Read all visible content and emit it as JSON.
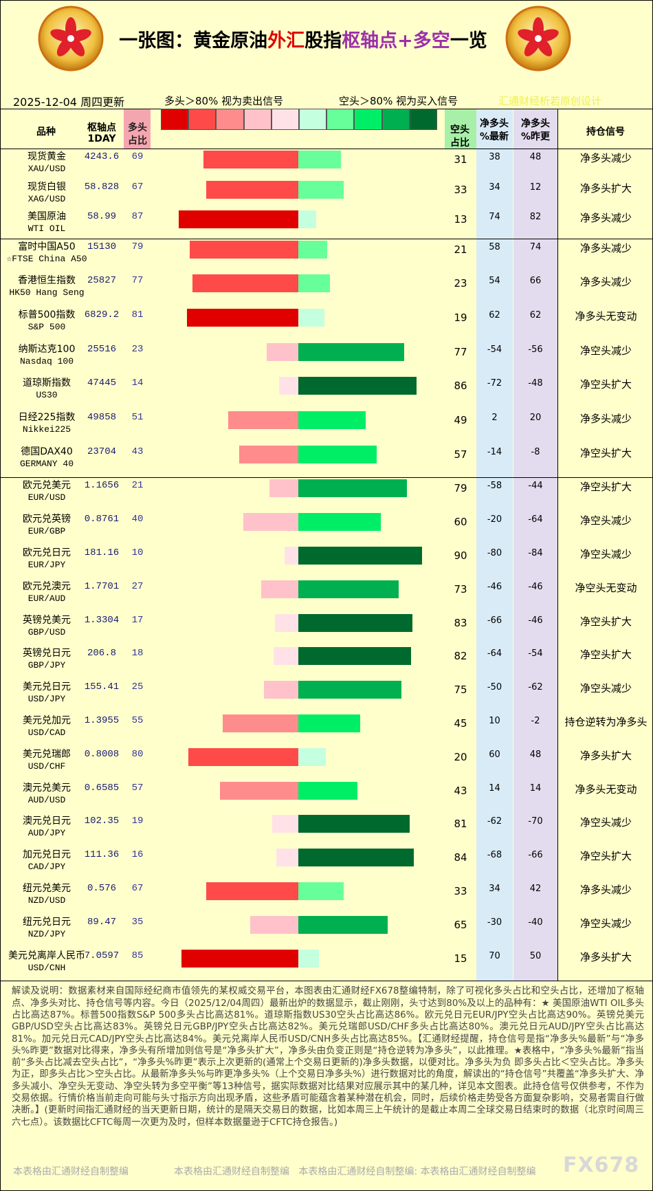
{
  "header": {
    "title_parts": [
      {
        "text": "一张图：黄金原油",
        "color": "#000000"
      },
      {
        "text": "外汇",
        "color": "#e00000"
      },
      {
        "text": "股指",
        "color": "#000000"
      },
      {
        "text": "枢轴点+多空",
        "color": "#9b30a8"
      },
      {
        "text": "一览",
        "color": "#000000"
      }
    ],
    "date": "2025-12-04 周四更新",
    "legend_long": "多头＞80% 视为卖出信号",
    "legend_short": "空头＞80% 视为买入信号",
    "credit": "汇通财经析若原创设计",
    "legend_colors": [
      "#e00000",
      "#ff4a4a",
      "#ff8c8c",
      "#ffc2ca",
      "#ffe2e8",
      "#c4ffe0",
      "#66ff99",
      "#00ee66",
      "#00b050",
      "#006a2e"
    ]
  },
  "columns": {
    "name": "品种",
    "pivot": [
      "枢轴点",
      "1DAY"
    ],
    "long": [
      "多头",
      "占比"
    ],
    "short": [
      "空头",
      "占比"
    ],
    "net_new": [
      "净多头",
      "%最新"
    ],
    "net_prev": [
      "净多头",
      "%昨更"
    ],
    "signal": "持仓信号"
  },
  "sections": [
    [
      {
        "name": "现货黄金",
        "code": "XAU/USD",
        "pivot": 4243.6,
        "long": 69,
        "short": 31,
        "net_new": 38,
        "net_prev": 48,
        "signal": "净多头减少"
      },
      {
        "name": "现货白银",
        "code": "XAG/USD",
        "pivot": 58.828,
        "long": 67,
        "short": 33,
        "net_new": 34,
        "net_prev": 12,
        "signal": "净多头扩大"
      },
      {
        "name": "美国原油",
        "code": "WTI OIL",
        "pivot": 58.99,
        "long": 87,
        "short": 13,
        "net_new": 74,
        "net_prev": 82,
        "signal": "净多头减少"
      }
    ],
    [
      {
        "name": "富时中国A50",
        "code": "☆FTSE China A50",
        "pivot": 15130,
        "long": 79,
        "short": 21,
        "net_new": 58,
        "net_prev": 74,
        "signal": "净多头减少"
      },
      {
        "name": "香港恒生指数",
        "code": "HK50 Hang Seng",
        "pivot": 25827,
        "long": 77,
        "short": 23,
        "net_new": 54,
        "net_prev": 66,
        "signal": "净多头减少"
      },
      {
        "name": "标普500指数",
        "code": "S&P 500",
        "pivot": 6829.2,
        "long": 81,
        "short": 19,
        "net_new": 62,
        "net_prev": 62,
        "signal": "净多头无变动"
      },
      {
        "name": "纳斯达克100",
        "code": "Nasdaq 100",
        "pivot": 25516,
        "long": 23,
        "short": 77,
        "net_new": -54,
        "net_prev": -56,
        "signal": "净空头减少"
      },
      {
        "name": "道琼斯指数",
        "code": "US30",
        "pivot": 47445,
        "long": 14,
        "short": 86,
        "net_new": -72,
        "net_prev": -48,
        "signal": "净空头扩大"
      },
      {
        "name": "日经225指数",
        "code": "Nikkei225",
        "pivot": 49858,
        "long": 51,
        "short": 49,
        "net_new": 2,
        "net_prev": 20,
        "signal": "净多头减少"
      },
      {
        "name": "德国DAX40",
        "code": "GERMANY 40",
        "pivot": 23704,
        "long": 43,
        "short": 57,
        "net_new": -14,
        "net_prev": -8,
        "signal": "净空头扩大"
      }
    ],
    [
      {
        "name": "欧元兑美元",
        "code": "EUR/USD",
        "pivot": 1.1656,
        "long": 21,
        "short": 79,
        "net_new": -58,
        "net_prev": -44,
        "signal": "净空头扩大"
      },
      {
        "name": "欧元兑英镑",
        "code": "EUR/GBP",
        "pivot": 0.8761,
        "long": 40,
        "short": 60,
        "net_new": -20,
        "net_prev": -64,
        "signal": "净空头减少"
      },
      {
        "name": "欧元兑日元",
        "code": "EUR/JPY",
        "pivot": 181.16,
        "long": 10,
        "short": 90,
        "net_new": -80,
        "net_prev": -84,
        "signal": "净空头减少"
      },
      {
        "name": "欧元兑澳元",
        "code": "EUR/AUD",
        "pivot": 1.7701,
        "long": 27,
        "short": 73,
        "net_new": -46,
        "net_prev": -46,
        "signal": "净空头无变动"
      },
      {
        "name": "英镑兑美元",
        "code": "GBP/USD",
        "pivot": 1.3304,
        "long": 17,
        "short": 83,
        "net_new": -66,
        "net_prev": -46,
        "signal": "净空头扩大"
      },
      {
        "name": "英镑兑日元",
        "code": "GBP/JPY",
        "pivot": 206.8,
        "long": 18,
        "short": 82,
        "net_new": -64,
        "net_prev": -54,
        "signal": "净空头扩大"
      },
      {
        "name": "美元兑日元",
        "code": "USD/JPY",
        "pivot": 155.41,
        "long": 25,
        "short": 75,
        "net_new": -50,
        "net_prev": -62,
        "signal": "净空头减少"
      },
      {
        "name": "美元兑加元",
        "code": "USD/CAD",
        "pivot": 1.3955,
        "long": 55,
        "short": 45,
        "net_new": 10,
        "net_prev": -2,
        "signal": "持仓逆转为净多头"
      },
      {
        "name": "美元兑瑞郎",
        "code": "USD/CHF",
        "pivot": 0.8008,
        "long": 80,
        "short": 20,
        "net_new": 60,
        "net_prev": 48,
        "signal": "净多头扩大"
      },
      {
        "name": "澳元兑美元",
        "code": "AUD/USD",
        "pivot": 0.6585,
        "long": 57,
        "short": 43,
        "net_new": 14,
        "net_prev": 14,
        "signal": "净多头无变动"
      },
      {
        "name": "澳元兑日元",
        "code": "AUD/JPY",
        "pivot": 102.35,
        "long": 19,
        "short": 81,
        "net_new": -62,
        "net_prev": -70,
        "signal": "净空头减少"
      },
      {
        "name": "加元兑日元",
        "code": "CAD/JPY",
        "pivot": 111.36,
        "long": 16,
        "short": 84,
        "net_new": -68,
        "net_prev": -66,
        "signal": "净空头扩大"
      },
      {
        "name": "纽元兑美元",
        "code": "NZD/USD",
        "pivot": 0.576,
        "long": 67,
        "short": 33,
        "net_new": 34,
        "net_prev": 42,
        "signal": "净多头减少"
      },
      {
        "name": "纽元兑日元",
        "code": "NZD/JPY",
        "pivot": 89.47,
        "long": 35,
        "short": 65,
        "net_new": -30,
        "net_prev": -40,
        "signal": "净空头减少"
      },
      {
        "name": "美元兑离岸人民币",
        "code": "USD/CNH",
        "pivot": 7.0597,
        "long": 85,
        "short": 15,
        "net_new": 70,
        "net_prev": 50,
        "signal": "净多头扩大"
      }
    ]
  ],
  "notes": "解读及说明：数据素材来自国际经纪商市值领先的某权威交易平台，本图表由汇通财经FX678整编特制，除了可视化多头占比和空头占比，还增加了枢轴点、净多头对比、持仓信号等内容。今日（2025/12/04周四）最新出炉的数据显示，截止刚刚，头寸达到80%及以上的品种有：★ 美国原油WTI OIL多头占比高达87%。标普500指数S&P 500多头占比高达81%。道琼斯指数US30空头占比高达86%。欧元兑日元EUR/JPY空头占比高达90%。英镑兑美元GBP/USD空头占比高达83%。英镑兑日元GBP/JPY空头占比高达82%。美元兑瑞郎USD/CHF多头占比高达80%。澳元兑日元AUD/JPY空头占比高达81%。加元兑日元CAD/JPY空头占比高达84%。美元兑离岸人民币USD/CNH多头占比高达85%。【汇通财经提醒，持仓信号是指“净多头%最新”与“净多头%昨更”数据对比得来，净多头有所增加则信号是“净多头扩大”，净多头由负变正则是“持仓逆转为净多头”，以此推理。★表格中，“净多头%最新”指当前“多头占比减去空头占比”，“净多头%昨更”表示上次更新的(通常上个交易日更新的)净多头数据，以便对比。净多头为负 即多头占比＜空头占比。净多头为正，即多头占比＞空头占比。从最新净多头%与昨更净多头%（上个交易日净多头%）进行数据对比的角度，解读出的“持仓信号”共覆盖“净多头扩大、净多头减小、净空头无变动、净空头转为多空平衡”等13种信号，据实际数据对比结果对应展示其中的某几种，详见本文图表。此持仓信号仅供参考，不作为交易依据。行情价格当前走向可能与头寸指示方向出现矛盾，这些矛盾可能蕴含着某种潜在机会，同时，后续价格走势受各方面复杂影响，交易者需自行做决断。】(更新时间指汇通财经的当天更新日期，统计的是隔天交易日的数据，比如本周三上午统计的是截止本周二全球交易日结束时的数据（北京时间周三六七点）。该数据比CFTC每周一次更为及时，但样本数据量逊于CFTC持仓报告。)",
  "footer": {
    "left": "本表格由汇通财经自制整编",
    "middle": "本表格由汇通财经自制整编   本表格由汇通财经自制整编: 本表格由汇通财经自制整编",
    "brand": "FX678"
  }
}
